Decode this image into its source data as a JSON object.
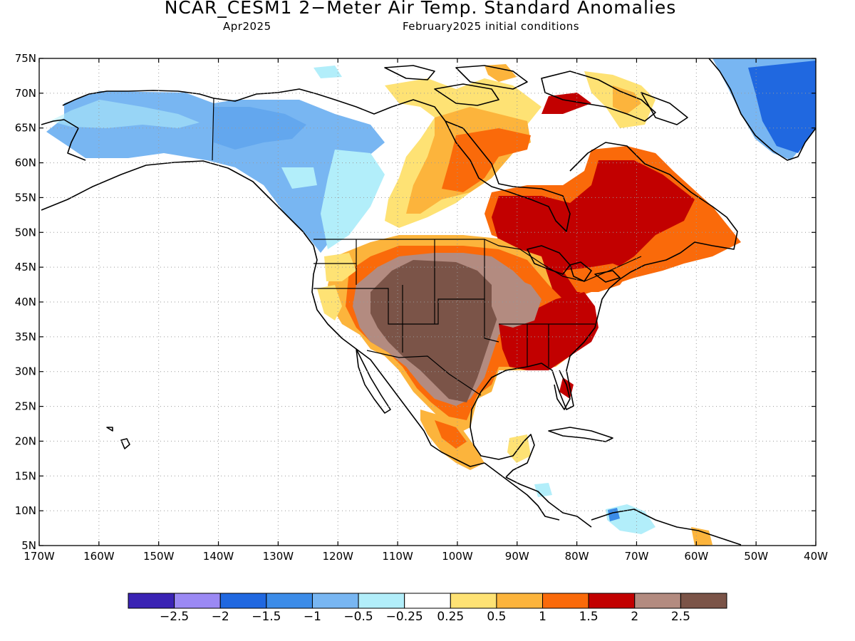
{
  "title": "NCAR_CESM1 2−Meter Air Temp. Standard Anomalies",
  "subtitle_left": "Apr2025",
  "subtitle_right": "February2025 initial conditions",
  "map": {
    "lat_labels": [
      "75N",
      "70N",
      "65N",
      "60N",
      "55N",
      "50N",
      "45N",
      "40N",
      "35N",
      "30N",
      "25N",
      "20N",
      "15N",
      "10N",
      "5N"
    ],
    "lon_labels": [
      "170W",
      "160W",
      "150W",
      "140W",
      "130W",
      "120W",
      "110W",
      "100W",
      "90W",
      "80W",
      "70W",
      "60W",
      "50W",
      "40W"
    ],
    "lat_range": [
      5,
      75
    ],
    "lon_range": [
      -170,
      -40
    ],
    "grid": "dotted"
  },
  "colorbar": {
    "colors": [
      "#3a23b4",
      "#9b89f4",
      "#2068e0",
      "#3c8ce8",
      "#78b6f2",
      "#b2eefa",
      "#ffffff",
      "#fee274",
      "#fcb43c",
      "#fa6a0a",
      "#c20000",
      "#b38b80",
      "#7b5448"
    ],
    "labels": [
      "−2.5",
      "−2",
      "−1.5",
      "−1",
      "−0.5",
      "−0.25",
      "0.25",
      "0.5",
      "1",
      "1.5",
      "2",
      "2.5"
    ]
  }
}
